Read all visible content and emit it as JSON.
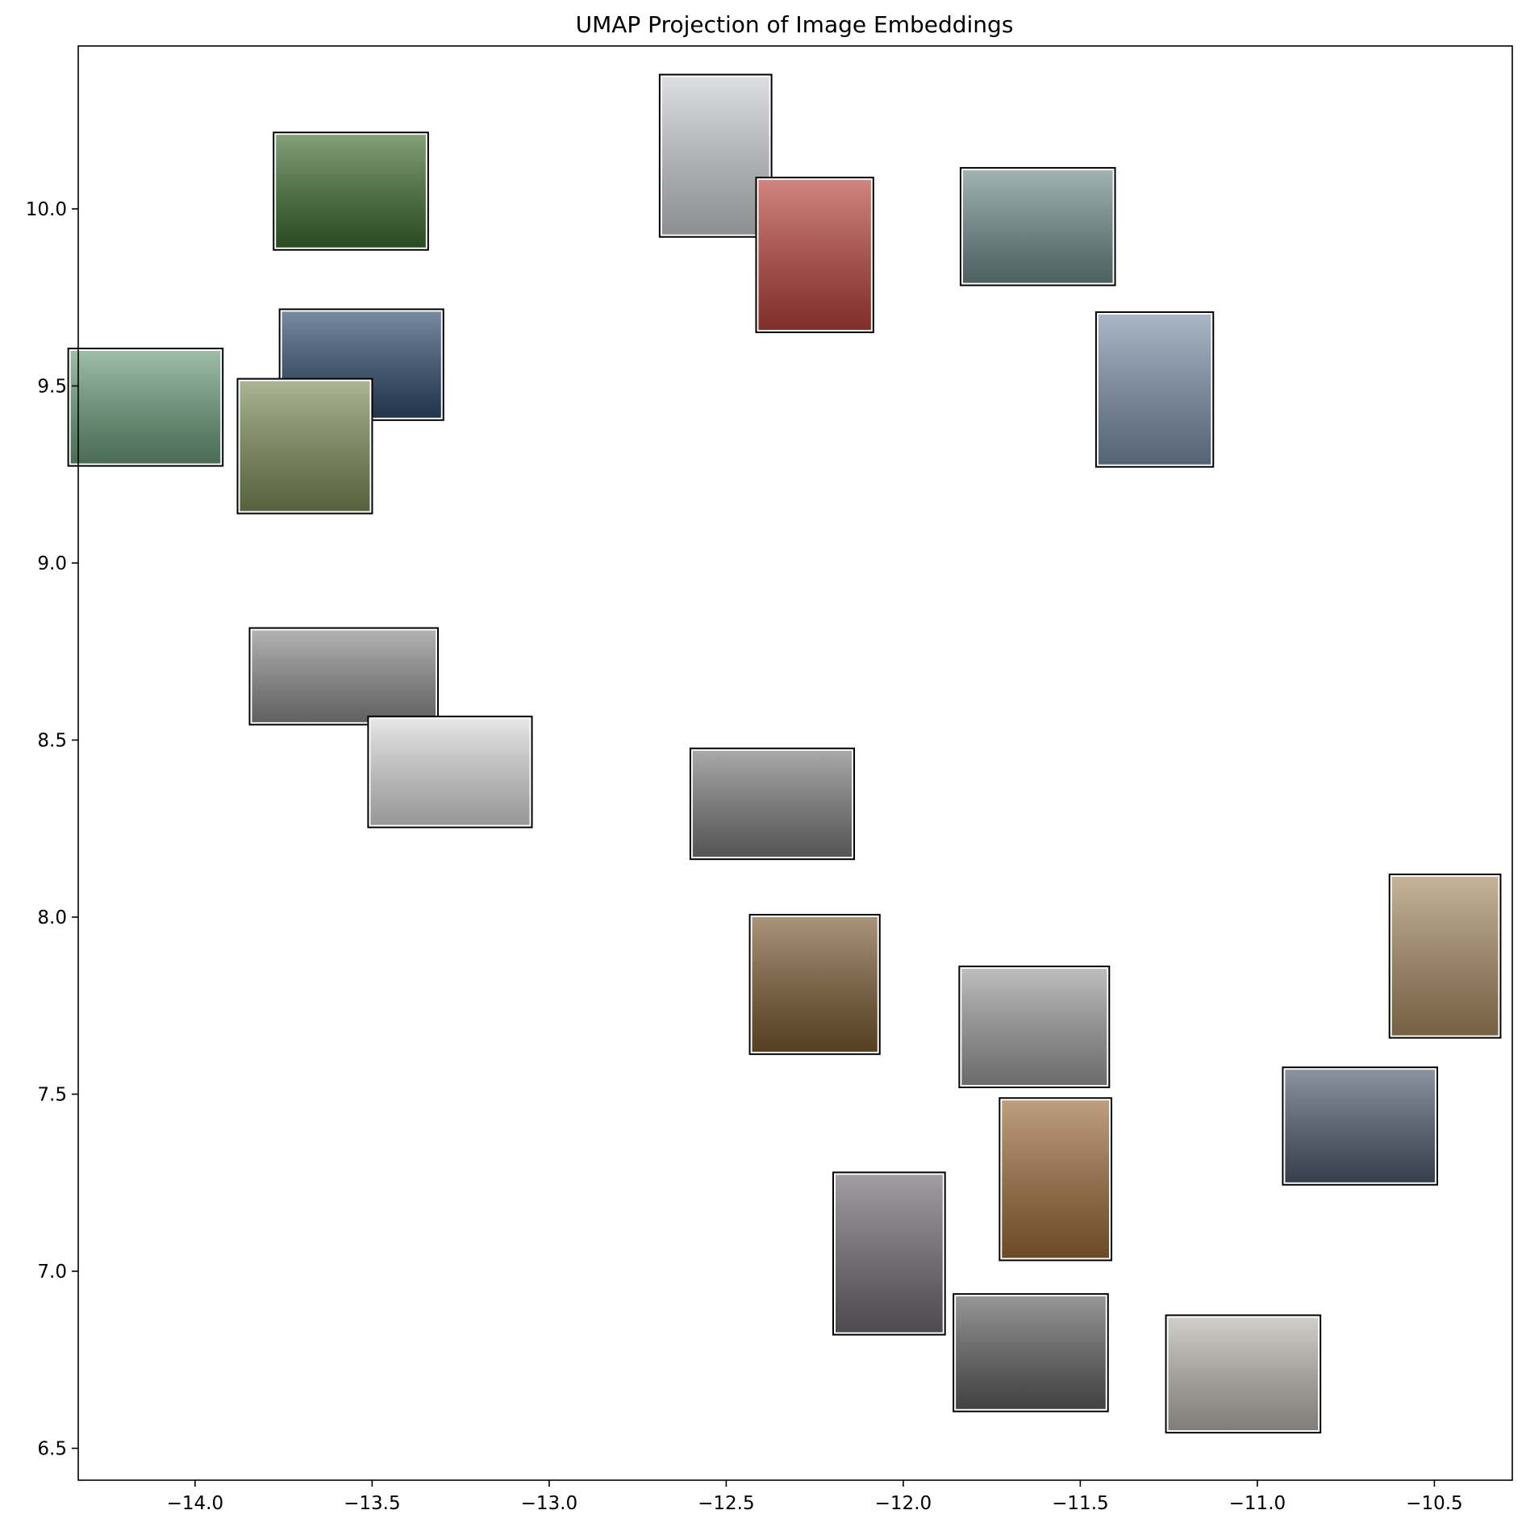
{
  "chart_data": {
    "type": "scatter",
    "title": "UMAP Projection of Image Embeddings",
    "xlabel": "",
    "ylabel": "",
    "xlim": [
      -14.33,
      -10.28
    ],
    "ylim": [
      6.41,
      10.46
    ],
    "xticks": [
      -14.0,
      -13.5,
      -13.0,
      -12.5,
      -12.0,
      -11.5,
      -11.0,
      -10.5
    ],
    "xtick_labels": [
      "−14.0",
      "−13.5",
      "−13.0",
      "−12.5",
      "−12.0",
      "−11.5",
      "−11.0",
      "−10.5"
    ],
    "yticks": [
      6.5,
      7.0,
      7.5,
      8.0,
      8.5,
      9.0,
      9.5,
      10.0
    ],
    "ytick_labels": [
      "6.5",
      "7.0",
      "7.5",
      "8.0",
      "8.5",
      "9.0",
      "9.5",
      "10.0"
    ],
    "grid": false,
    "legend": "none",
    "points": [
      {
        "x": -13.56,
        "y": 10.05,
        "image": "baseball-game",
        "color": "#3d6b30",
        "aspect": 1.33
      },
      {
        "x": -12.53,
        "y": 10.15,
        "image": "harbour-bridge-planes",
        "color": "#c9ccd0",
        "aspect": 0.68
      },
      {
        "x": -12.25,
        "y": 9.87,
        "image": "red-double-decker-bus",
        "color": "#b8423a",
        "aspect": 0.75
      },
      {
        "x": -11.62,
        "y": 9.95,
        "image": "highway-overpass-signs",
        "color": "#6f8a8a",
        "aspect": 1.33
      },
      {
        "x": -11.29,
        "y": 9.49,
        "image": "stop-sign",
        "color": "#7a8fa8",
        "aspect": 0.75
      },
      {
        "x": -13.53,
        "y": 9.56,
        "image": "tennis-player",
        "color": "#2e4b6b",
        "aspect": 1.5
      },
      {
        "x": -14.14,
        "y": 9.44,
        "image": "group-of-kids",
        "color": "#6b9a7a",
        "aspect": 1.33
      },
      {
        "x": -13.69,
        "y": 9.33,
        "image": "baseball-runner",
        "color": "#7d8b58",
        "aspect": 1.0
      },
      {
        "x": -13.58,
        "y": 8.68,
        "image": "paddleboarder",
        "color": "#8a8a8a",
        "aspect": 2.0
      },
      {
        "x": -13.28,
        "y": 8.41,
        "image": "skier",
        "color": "#d8d8d8",
        "aspect": 1.5
      },
      {
        "x": -12.37,
        "y": 8.32,
        "image": "zebras",
        "color": "#7a7a7a",
        "aspect": 1.5
      },
      {
        "x": -12.25,
        "y": 7.81,
        "image": "brown-bear",
        "color": "#7a5a32",
        "aspect": 0.93
      },
      {
        "x": -11.63,
        "y": 7.69,
        "image": "sandwich-plate",
        "color": "#9a9a9a",
        "aspect": 1.25
      },
      {
        "x": -10.47,
        "y": 7.89,
        "image": "kitchen",
        "color": "#a88a62",
        "aspect": 0.67
      },
      {
        "x": -10.71,
        "y": 7.41,
        "image": "bedroom",
        "color": "#4e5a6e",
        "aspect": 1.33
      },
      {
        "x": -11.57,
        "y": 7.26,
        "image": "teddy-bears",
        "color": "#9a6a3a",
        "aspect": 0.68
      },
      {
        "x": -12.04,
        "y": 7.05,
        "image": "woman-with-phone",
        "color": "#6e6a72",
        "aspect": 0.68
      },
      {
        "x": -11.64,
        "y": 6.77,
        "image": "cat-on-laptop",
        "color": "#5e5e5e",
        "aspect": 1.33
      },
      {
        "x": -11.04,
        "y": 6.71,
        "image": "desktop-computer",
        "color": "#b8b4ac",
        "aspect": 1.33
      }
    ]
  }
}
